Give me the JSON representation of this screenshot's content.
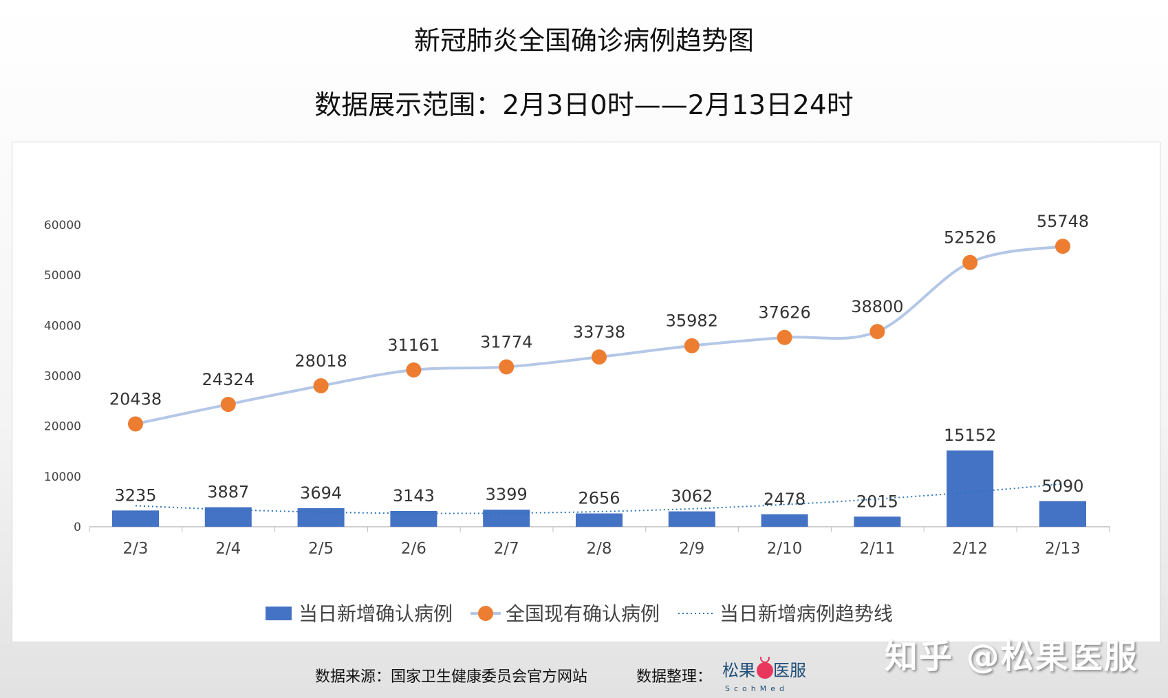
{
  "title": "新冠肺炎全国确诊病例趋势图",
  "subtitle": "数据展示范围：2月3日0时——2月13日24时",
  "footer": {
    "source": "数据来源：国家卫生健康委员会官方网站",
    "compiler_label": "数据整理：",
    "compiler_logo": "松果医服 ScohMed"
  },
  "watermark": "知乎 @松果医服",
  "chart_data": {
    "type": "bar+line",
    "categories": [
      "2/3",
      "2/4",
      "2/5",
      "2/6",
      "2/7",
      "2/8",
      "2/9",
      "2/10",
      "2/11",
      "2/12",
      "2/13"
    ],
    "series": [
      {
        "name": "当日新增确认病例",
        "type": "bar",
        "color": "#4472C4",
        "values": [
          3235,
          3887,
          3694,
          3143,
          3399,
          2656,
          3062,
          2478,
          2015,
          15152,
          5090
        ]
      },
      {
        "name": "全国现有确认病例",
        "type": "line",
        "color": "#ED7D31",
        "line_color": "#B4C7E7",
        "values": [
          20438,
          24324,
          28018,
          31161,
          31774,
          33738,
          35982,
          37626,
          38800,
          52526,
          55748
        ]
      },
      {
        "name": "当日新增病例趋势线",
        "type": "trendline",
        "color": "#2E75B6",
        "style": "dotted",
        "of": "当日新增确认病例"
      }
    ],
    "yticks": [
      0,
      10000,
      20000,
      30000,
      40000,
      50000,
      60000
    ],
    "ylim": [
      0,
      60000
    ],
    "grid": false,
    "data_labels": true,
    "legend": "bottom"
  }
}
